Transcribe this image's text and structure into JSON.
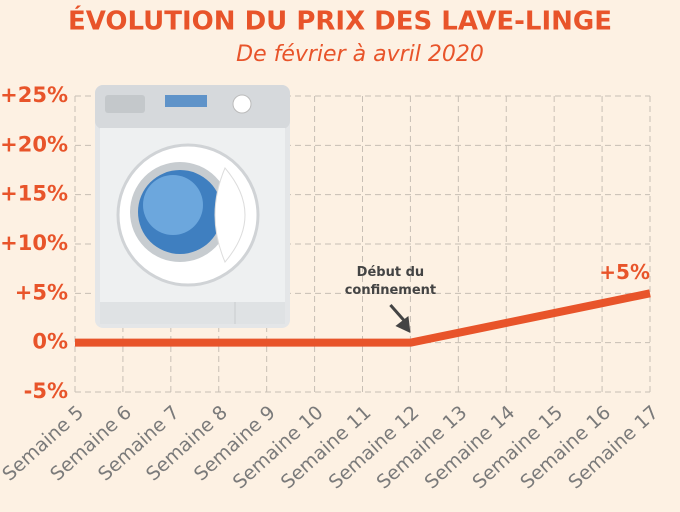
{
  "chart_data": {
    "type": "line",
    "title": "ÉVOLUTION DU PRIX DES LAVE-LINGE",
    "subtitle": "De février à avril 2020",
    "categories": [
      "Semaine 5",
      "Semaine 6",
      "Semaine 7",
      "Semaine 8",
      "Semaine 9",
      "Semaine 10",
      "Semaine 11",
      "Semaine 12",
      "Semaine 13",
      "Semaine 14",
      "Semaine 15",
      "Semaine 16",
      "Semaine 17"
    ],
    "series": [
      {
        "name": "Prix des lave-linge",
        "color": "#e8542a",
        "values": [
          0,
          0,
          0,
          0,
          0,
          0,
          0,
          0,
          1,
          2,
          3,
          4,
          5
        ],
        "value_labels": [
          null,
          null,
          null,
          null,
          null,
          null,
          null,
          null,
          null,
          null,
          null,
          null,
          "+5%"
        ]
      }
    ],
    "annotation": [
      "Début du",
      "confinement"
    ],
    "ylim": [
      -5,
      25
    ],
    "yticks": [
      {
        "value": -5,
        "label": "-5%"
      },
      {
        "value": 0,
        "label": "0%"
      },
      {
        "value": 5,
        "label": "+5%"
      },
      {
        "value": 10,
        "label": "+10%"
      },
      {
        "value": 15,
        "label": "+15%"
      },
      {
        "value": 20,
        "label": "+20%"
      },
      {
        "value": 25,
        "label": "+25%"
      }
    ],
    "grid": true
  }
}
